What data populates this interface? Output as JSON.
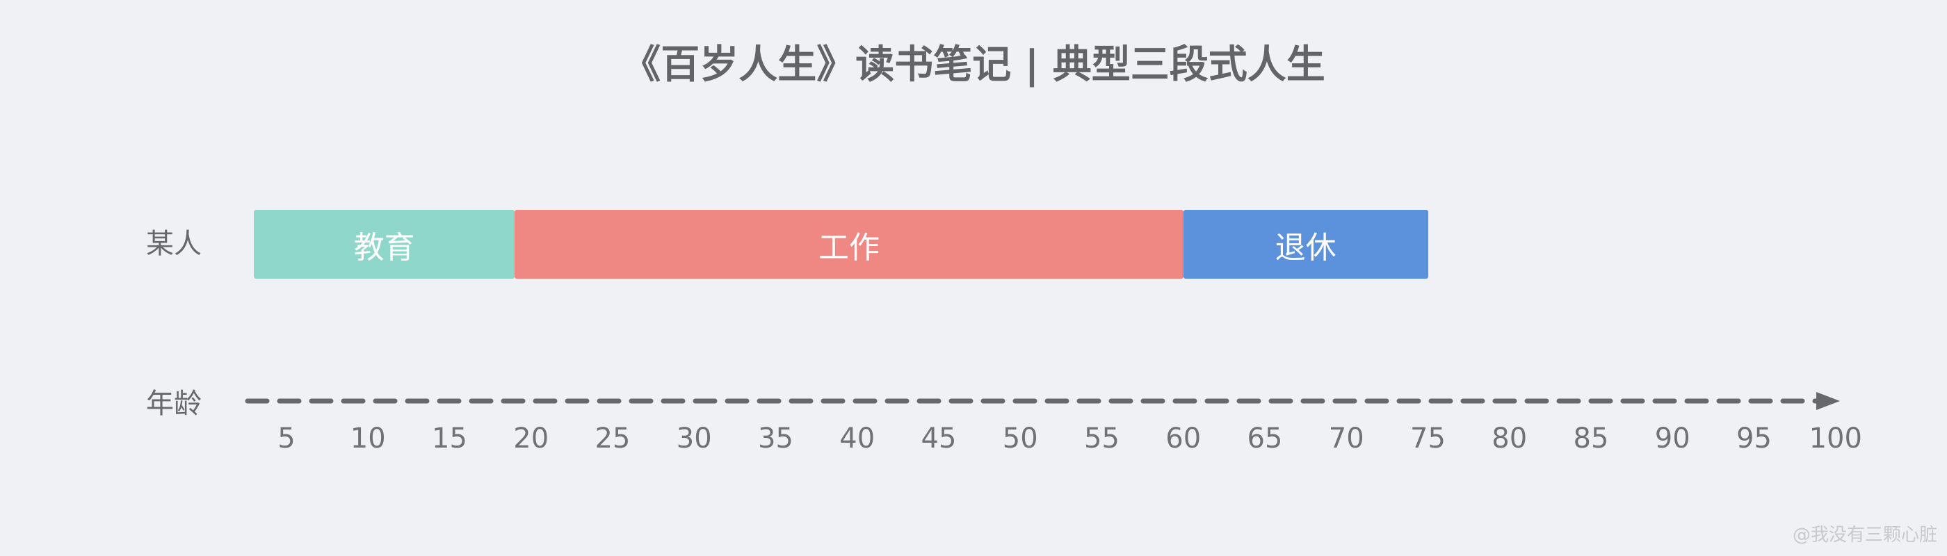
{
  "title": "《百岁人生》读书笔记 | 典型三段式人生",
  "row_label": "某人",
  "axis_label": "年龄",
  "segments": [
    {
      "label": "教育",
      "start": 3,
      "end": 19,
      "color": "#8fd7cb"
    },
    {
      "label": "工作",
      "start": 19,
      "end": 60,
      "color": "#ef8783"
    },
    {
      "label": "退休",
      "start": 60,
      "end": 75,
      "color": "#5c91dc"
    }
  ],
  "ticks": [
    "5",
    "10",
    "15",
    "20",
    "25",
    "30",
    "35",
    "40",
    "45",
    "50",
    "55",
    "60",
    "65",
    "70",
    "75",
    "80",
    "85",
    "90",
    "95",
    "100"
  ],
  "axis_color": "#66686c",
  "watermark": "@我没有三颗心脏"
}
